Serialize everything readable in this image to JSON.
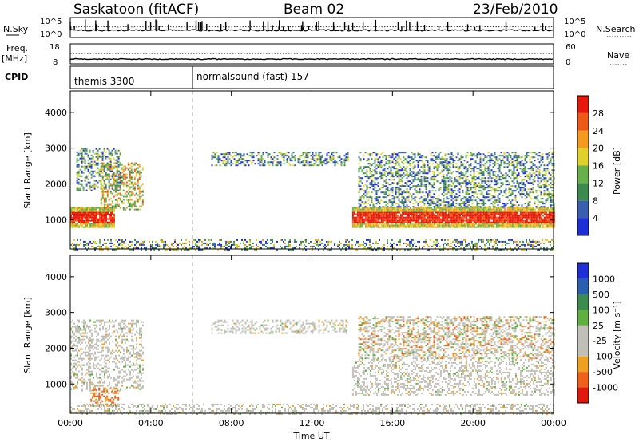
{
  "header": {
    "station": "Saskatoon (fitACF)",
    "beam": "Beam 02",
    "date": "23/Feb/2010"
  },
  "noise_panel": {
    "left_label": "N.Sky",
    "right_label": "N.Search",
    "left_ticks": [
      "10^5",
      "10^0"
    ],
    "right_ticks": [
      "10^5",
      "10^0"
    ]
  },
  "freq_panel": {
    "left_label": "Freq.",
    "left_unit": "[MHz]",
    "right_label": "Nave",
    "left_ticks": [
      "18",
      "8"
    ],
    "right_ticks": [
      "60",
      "0"
    ]
  },
  "cpid_panel": {
    "label": "CPID",
    "modes": [
      {
        "name": "themis 3300",
        "start_hour": 0
      },
      {
        "name": "normalsound (fast) 157",
        "start_hour": 6
      }
    ]
  },
  "colors": {
    "power": [
      "#1f2fd8",
      "#3a5fb0",
      "#3b8a50",
      "#67b04a",
      "#e0d12a",
      "#f59a1e",
      "#ee5a16",
      "#e8180c"
    ],
    "velocity": [
      "#e0180e",
      "#f0601a",
      "#f0a020",
      "#c0c0b8",
      "#c0c0b8",
      "#60b040",
      "#3c8c50",
      "#2a5fb0",
      "#1f2fd8"
    ],
    "gray_scatter": "#c0c0b8"
  },
  "chart_data": [
    {
      "type": "heatmap",
      "title": "",
      "xlabel": "",
      "ylabel": "Slant Range [km]",
      "x_range_hours": [
        0,
        24
      ],
      "ylim": [
        180,
        4600
      ],
      "x_ticks": [
        "00:00",
        "04:00",
        "08:00",
        "12:00",
        "16:00",
        "20:00",
        "00:00"
      ],
      "y_ticks": [
        1000,
        2000,
        3000,
        4000
      ],
      "colorbar": {
        "label": "Power [dB]",
        "ticks": [
          "4",
          "8",
          "12",
          "16",
          "20",
          "24",
          "28"
        ]
      },
      "regions": [
        {
          "t_start": 0.0,
          "t_end": 2.2,
          "range_start": 800,
          "range_end": 1350,
          "level": "high"
        },
        {
          "t_start": 1.5,
          "t_end": 3.6,
          "range_start": 1300,
          "range_end": 2600,
          "level": "medium"
        },
        {
          "t_start": 0.3,
          "t_end": 2.5,
          "range_start": 1800,
          "range_end": 3000,
          "level": "low"
        },
        {
          "t_start": 7.0,
          "t_end": 13.8,
          "range_start": 2500,
          "range_end": 2900,
          "level": "low"
        },
        {
          "t_start": 14.0,
          "t_end": 24.0,
          "range_start": 800,
          "range_end": 1350,
          "level": "high"
        },
        {
          "t_start": 14.3,
          "t_end": 24.0,
          "range_start": 1350,
          "range_end": 2900,
          "level": "low"
        },
        {
          "t_start": 0.0,
          "t_end": 24.0,
          "range_start": 180,
          "range_end": 450,
          "level": "ground"
        }
      ]
    },
    {
      "type": "heatmap",
      "title": "",
      "xlabel": "Time UT",
      "ylabel": "Slant Range [km]",
      "x_range_hours": [
        0,
        24
      ],
      "ylim": [
        180,
        4600
      ],
      "x_ticks": [
        "00:00",
        "04:00",
        "08:00",
        "12:00",
        "16:00",
        "20:00",
        "00:00"
      ],
      "y_ticks": [
        1000,
        2000,
        3000,
        4000
      ],
      "colorbar": {
        "label": "Velocity [m s⁻¹]",
        "ticks": [
          "1000",
          "500",
          "100",
          "25",
          "-25",
          "-100",
          "-500",
          "-1000"
        ]
      },
      "regions": [
        {
          "t_start": 0.0,
          "t_end": 3.6,
          "range_start": 800,
          "range_end": 2800,
          "level": "ground"
        },
        {
          "t_start": 1.0,
          "t_end": 2.4,
          "range_start": 400,
          "range_end": 900,
          "level": "negative"
        },
        {
          "t_start": 7.0,
          "t_end": 13.8,
          "range_start": 2400,
          "range_end": 2800,
          "level": "ground"
        },
        {
          "t_start": 14.0,
          "t_end": 24.0,
          "range_start": 700,
          "range_end": 1700,
          "level": "ground"
        },
        {
          "t_start": 14.3,
          "t_end": 24.0,
          "range_start": 1700,
          "range_end": 2900,
          "level": "mixed"
        },
        {
          "t_start": 0.0,
          "t_end": 24.0,
          "range_start": 180,
          "range_end": 450,
          "level": "ground"
        }
      ]
    }
  ]
}
